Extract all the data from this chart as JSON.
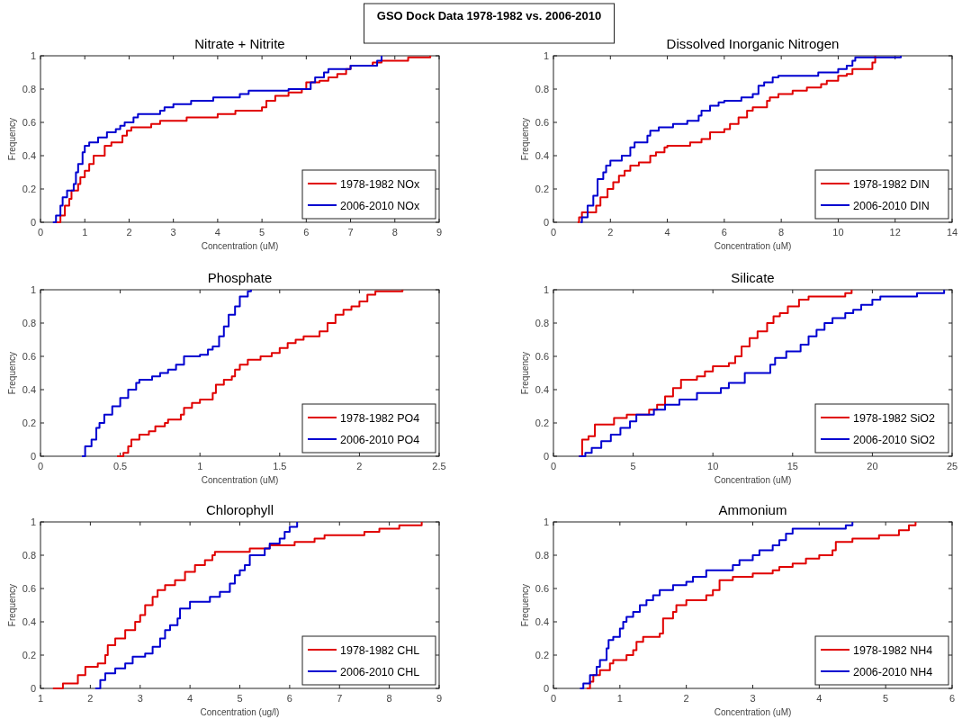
{
  "chart_data": [
    {
      "type": "step",
      "title": "Nitrate + Nitrite",
      "xlabel": "Concentration (uM)",
      "ylabel": "Frequency",
      "annotations": [
        "GSO Dock Data 1978-1982 vs. 2006-2010"
      ],
      "xlim": [
        0,
        9
      ],
      "xticks": [
        0,
        1,
        2,
        3,
        4,
        5,
        6,
        7,
        8,
        9
      ],
      "ylim": [
        0,
        1
      ],
      "yticks": [
        {
          "value": 0,
          "label": "0"
        },
        {
          "value": 0.2,
          "label": "0.2"
        },
        {
          "value": 0.4,
          "label": "0.4"
        },
        {
          "value": 0.6,
          "label": "0.6"
        },
        {
          "value": 0.8,
          "label": "0.8"
        },
        {
          "value": 1,
          "label": "1"
        }
      ],
      "legend": "bottom right",
      "grid": false,
      "series": [
        {
          "name": "1978-1982 NOx",
          "color": "#e00000",
          "x": [
            0.3,
            0.45,
            0.55,
            0.65,
            0.7,
            0.85,
            0.9,
            1.0,
            1.1,
            1.2,
            1.45,
            1.6,
            1.85,
            1.95,
            2.05,
            2.5,
            2.7,
            3.3,
            4.0,
            4.4,
            5.0,
            5.1,
            5.3,
            5.6,
            5.9,
            6.0,
            6.3,
            6.5,
            6.7,
            6.9,
            7.0,
            7.5,
            7.7,
            8.3,
            8.8
          ],
          "values": [
            0,
            0.04,
            0.1,
            0.14,
            0.19,
            0.23,
            0.27,
            0.31,
            0.35,
            0.4,
            0.46,
            0.48,
            0.52,
            0.55,
            0.57,
            0.59,
            0.61,
            0.63,
            0.65,
            0.67,
            0.69,
            0.73,
            0.76,
            0.78,
            0.8,
            0.84,
            0.85,
            0.87,
            0.89,
            0.92,
            0.94,
            0.96,
            0.97,
            0.99,
            1.0
          ]
        },
        {
          "name": "2006-2010 NOx",
          "color": "#0000d0",
          "x": [
            0.28,
            0.35,
            0.45,
            0.5,
            0.6,
            0.75,
            0.8,
            0.85,
            0.95,
            1.0,
            1.1,
            1.3,
            1.5,
            1.7,
            1.8,
            1.9,
            2.1,
            2.2,
            2.7,
            2.8,
            3.0,
            3.4,
            3.9,
            4.5,
            4.7,
            5.6,
            6.1,
            6.2,
            6.4,
            6.5,
            7.0,
            7.6,
            7.7
          ],
          "values": [
            0,
            0.04,
            0.1,
            0.15,
            0.19,
            0.23,
            0.3,
            0.35,
            0.42,
            0.46,
            0.48,
            0.51,
            0.54,
            0.56,
            0.58,
            0.6,
            0.63,
            0.65,
            0.67,
            0.69,
            0.71,
            0.73,
            0.75,
            0.77,
            0.79,
            0.8,
            0.84,
            0.87,
            0.9,
            0.92,
            0.94,
            0.97,
            1.0
          ]
        }
      ]
    },
    {
      "type": "step",
      "title": "Dissolved Inorganic Nitrogen",
      "xlabel": "Concentration (uM)",
      "ylabel": "Frequency",
      "xlim": [
        0,
        14
      ],
      "xticks": [
        0,
        2,
        4,
        6,
        8,
        10,
        12,
        14
      ],
      "ylim": [
        0,
        1
      ],
      "yticks": [
        {
          "value": 0,
          "label": "0"
        },
        {
          "value": 0.2,
          "label": "0.2"
        },
        {
          "value": 0.4,
          "label": "0.4"
        },
        {
          "value": 0.6,
          "label": "0.6"
        },
        {
          "value": 0.8,
          "label": "0.8"
        },
        {
          "value": 1,
          "label": "1"
        }
      ],
      "legend": "bottom right",
      "grid": false,
      "series": [
        {
          "name": "1978-1982 DIN",
          "color": "#e00000",
          "x": [
            0.85,
            0.9,
            1.0,
            1.5,
            1.65,
            1.9,
            2.1,
            2.3,
            2.5,
            2.7,
            3.0,
            3.4,
            3.6,
            3.9,
            4.0,
            4.8,
            5.2,
            5.5,
            6.0,
            6.2,
            6.5,
            6.8,
            7.0,
            7.5,
            7.6,
            7.9,
            8.4,
            8.9,
            9.4,
            9.6,
            10.0,
            10.3,
            10.5,
            11.2,
            11.3
          ],
          "values": [
            0,
            0.03,
            0.06,
            0.1,
            0.15,
            0.2,
            0.24,
            0.28,
            0.31,
            0.34,
            0.36,
            0.4,
            0.42,
            0.45,
            0.46,
            0.48,
            0.5,
            0.54,
            0.56,
            0.59,
            0.63,
            0.67,
            0.69,
            0.73,
            0.75,
            0.77,
            0.79,
            0.81,
            0.83,
            0.85,
            0.88,
            0.89,
            0.92,
            0.96,
            1.0
          ]
        },
        {
          "name": "2006-2010 DIN",
          "color": "#0000d0",
          "x": [
            0.95,
            1.0,
            1.2,
            1.4,
            1.55,
            1.75,
            1.85,
            2.0,
            2.4,
            2.7,
            2.85,
            3.3,
            3.4,
            3.7,
            4.2,
            4.7,
            5.1,
            5.2,
            5.5,
            5.8,
            6.0,
            6.6,
            7.0,
            7.2,
            7.4,
            7.7,
            7.9,
            9.3,
            10.0,
            10.3,
            10.5,
            10.6,
            11.2,
            12.2
          ],
          "values": [
            0,
            0.03,
            0.1,
            0.16,
            0.26,
            0.3,
            0.34,
            0.37,
            0.4,
            0.45,
            0.48,
            0.52,
            0.55,
            0.57,
            0.59,
            0.61,
            0.64,
            0.67,
            0.7,
            0.72,
            0.73,
            0.75,
            0.77,
            0.82,
            0.84,
            0.87,
            0.88,
            0.9,
            0.92,
            0.94,
            0.97,
            0.99,
            0.99,
            1.0
          ]
        }
      ]
    },
    {
      "type": "step",
      "title": "Phosphate",
      "xlabel": "Concentration (uM)",
      "ylabel": "Frequency",
      "xlim": [
        0,
        2.5
      ],
      "xticks": [
        0,
        0.5,
        1,
        1.5,
        2,
        2.5
      ],
      "ylim": [
        0,
        1
      ],
      "yticks": [
        {
          "value": 0,
          "label": "0"
        },
        {
          "value": 0.2,
          "label": "0.2"
        },
        {
          "value": 0.4,
          "label": "0.4"
        },
        {
          "value": 0.6,
          "label": "0.6"
        },
        {
          "value": 0.8,
          "label": "0.8"
        },
        {
          "value": 1,
          "label": "1"
        }
      ],
      "legend": "bottom right",
      "grid": false,
      "series": [
        {
          "name": "1978-1982 PO4",
          "color": "#e00000",
          "x": [
            0.48,
            0.52,
            0.55,
            0.57,
            0.62,
            0.68,
            0.72,
            0.78,
            0.8,
            0.88,
            0.9,
            0.95,
            1.0,
            1.08,
            1.1,
            1.15,
            1.2,
            1.22,
            1.25,
            1.3,
            1.38,
            1.45,
            1.5,
            1.55,
            1.6,
            1.65,
            1.75,
            1.8,
            1.85,
            1.9,
            1.95,
            2.0,
            2.05,
            2.1,
            2.27
          ],
          "values": [
            0,
            0.02,
            0.06,
            0.1,
            0.13,
            0.15,
            0.18,
            0.2,
            0.22,
            0.25,
            0.29,
            0.32,
            0.34,
            0.38,
            0.43,
            0.46,
            0.48,
            0.52,
            0.55,
            0.58,
            0.6,
            0.62,
            0.65,
            0.68,
            0.7,
            0.72,
            0.75,
            0.8,
            0.85,
            0.88,
            0.9,
            0.93,
            0.97,
            0.99,
            1.0
          ]
        },
        {
          "name": "2006-2010 PO4",
          "color": "#0000d0",
          "x": [
            0.26,
            0.28,
            0.32,
            0.35,
            0.37,
            0.4,
            0.45,
            0.5,
            0.55,
            0.6,
            0.62,
            0.7,
            0.75,
            0.8,
            0.85,
            0.9,
            1.0,
            1.05,
            1.08,
            1.12,
            1.15,
            1.18,
            1.22,
            1.25,
            1.3,
            1.32
          ],
          "values": [
            0,
            0.06,
            0.1,
            0.17,
            0.2,
            0.25,
            0.3,
            0.35,
            0.4,
            0.44,
            0.46,
            0.48,
            0.5,
            0.52,
            0.55,
            0.6,
            0.61,
            0.64,
            0.66,
            0.72,
            0.78,
            0.85,
            0.9,
            0.96,
            0.99,
            1.0
          ]
        }
      ]
    },
    {
      "type": "step",
      "title": "Silicate",
      "xlabel": "Concentration (uM)",
      "ylabel": "Frequency",
      "xlim": [
        0,
        25
      ],
      "xticks": [
        0,
        5,
        10,
        15,
        20,
        25
      ],
      "ylim": [
        0,
        1
      ],
      "yticks": [
        {
          "value": 0,
          "label": "0"
        },
        {
          "value": 0.2,
          "label": "0.2"
        },
        {
          "value": 0.4,
          "label": "0.4"
        },
        {
          "value": 0.6,
          "label": "0.6"
        },
        {
          "value": 0.8,
          "label": "0.8"
        },
        {
          "value": 1,
          "label": "1"
        }
      ],
      "legend": "bottom right",
      "grid": false,
      "series": [
        {
          "name": "1978-1982 SiO2",
          "color": "#e00000",
          "x": [
            1.6,
            1.8,
            2.2,
            2.6,
            3.8,
            4.6,
            6.0,
            6.5,
            7.0,
            7.5,
            8.0,
            9.0,
            9.5,
            10.0,
            11.0,
            11.4,
            11.8,
            12.3,
            12.8,
            13.4,
            13.8,
            14.2,
            14.7,
            15.4,
            16.0,
            18.3,
            18.7
          ],
          "values": [
            0,
            0.1,
            0.12,
            0.19,
            0.23,
            0.25,
            0.28,
            0.31,
            0.36,
            0.41,
            0.46,
            0.48,
            0.51,
            0.54,
            0.56,
            0.6,
            0.66,
            0.71,
            0.75,
            0.8,
            0.84,
            0.86,
            0.9,
            0.94,
            0.96,
            0.98,
            1.0
          ]
        },
        {
          "name": "2006-2010 SiO2",
          "color": "#0000d0",
          "x": [
            1.6,
            2.0,
            2.4,
            3.0,
            3.6,
            4.2,
            4.8,
            5.2,
            6.3,
            7.0,
            7.9,
            9.0,
            10.5,
            11.0,
            12.0,
            13.6,
            13.9,
            14.6,
            15.5,
            16.0,
            16.5,
            17.0,
            17.5,
            18.3,
            18.8,
            19.3,
            20.0,
            20.5,
            22.8,
            24.5
          ],
          "values": [
            0,
            0.02,
            0.05,
            0.09,
            0.13,
            0.17,
            0.21,
            0.25,
            0.28,
            0.31,
            0.34,
            0.38,
            0.41,
            0.44,
            0.5,
            0.55,
            0.59,
            0.63,
            0.67,
            0.72,
            0.76,
            0.8,
            0.83,
            0.86,
            0.88,
            0.91,
            0.94,
            0.96,
            0.98,
            1.0
          ]
        }
      ]
    },
    {
      "type": "step",
      "title": "Chlorophyll",
      "xlabel": "Concentration (ug/l)",
      "ylabel": "Frequency",
      "xlim": [
        1,
        9
      ],
      "xticks": [
        1,
        2,
        3,
        4,
        5,
        6,
        7,
        8,
        9
      ],
      "ylim": [
        0,
        1
      ],
      "yticks": [
        {
          "value": 0,
          "label": "0"
        },
        {
          "value": 0.2,
          "label": "0.2"
        },
        {
          "value": 0.4,
          "label": "0.4"
        },
        {
          "value": 0.6,
          "label": "0.6"
        },
        {
          "value": 0.8,
          "label": "0.8"
        },
        {
          "value": 1,
          "label": "1"
        }
      ],
      "legend": "bottom right",
      "grid": false,
      "series": [
        {
          "name": "1978-1982 CHL",
          "color": "#e00000",
          "x": [
            1.25,
            1.45,
            1.75,
            1.9,
            2.15,
            2.3,
            2.35,
            2.5,
            2.7,
            2.9,
            3.0,
            3.1,
            3.25,
            3.35,
            3.5,
            3.7,
            3.9,
            4.1,
            4.3,
            4.45,
            4.5,
            5.2,
            5.6,
            6.1,
            6.5,
            6.7,
            7.5,
            7.8,
            8.2,
            8.65
          ],
          "values": [
            0,
            0.03,
            0.08,
            0.13,
            0.15,
            0.2,
            0.26,
            0.3,
            0.35,
            0.4,
            0.44,
            0.5,
            0.55,
            0.59,
            0.62,
            0.65,
            0.7,
            0.74,
            0.77,
            0.8,
            0.82,
            0.84,
            0.86,
            0.88,
            0.9,
            0.92,
            0.94,
            0.96,
            0.98,
            1.0
          ]
        },
        {
          "name": "2006-2010 CHL",
          "color": "#0000d0",
          "x": [
            2.1,
            2.2,
            2.3,
            2.5,
            2.7,
            2.85,
            3.1,
            3.25,
            3.4,
            3.5,
            3.6,
            3.75,
            3.8,
            4.0,
            4.4,
            4.6,
            4.8,
            4.9,
            5.0,
            5.1,
            5.2,
            5.5,
            5.6,
            5.8,
            5.9,
            6.0,
            6.15
          ],
          "values": [
            0,
            0.05,
            0.09,
            0.12,
            0.15,
            0.19,
            0.21,
            0.25,
            0.3,
            0.35,
            0.38,
            0.42,
            0.48,
            0.52,
            0.55,
            0.58,
            0.63,
            0.68,
            0.71,
            0.74,
            0.8,
            0.84,
            0.87,
            0.9,
            0.94,
            0.97,
            1.0
          ]
        }
      ]
    },
    {
      "type": "step",
      "title": "Ammonium",
      "xlabel": "Concentration (uM)",
      "ylabel": "Frequency",
      "xlim": [
        0,
        6
      ],
      "xticks": [
        0,
        1,
        2,
        3,
        4,
        5,
        6
      ],
      "ylim": [
        0,
        1
      ],
      "yticks": [
        {
          "value": 0,
          "label": "0"
        },
        {
          "value": 0.2,
          "label": "0.2"
        },
        {
          "value": 0.4,
          "label": "0.4"
        },
        {
          "value": 0.6,
          "label": "0.6"
        },
        {
          "value": 0.8,
          "label": "0.8"
        },
        {
          "value": 1,
          "label": "1"
        }
      ],
      "legend": "bottom right",
      "grid": false,
      "series": [
        {
          "name": "1978-1982 NH4",
          "color": "#e00000",
          "x": [
            0.5,
            0.55,
            0.6,
            0.7,
            0.85,
            0.9,
            1.1,
            1.2,
            1.25,
            1.35,
            1.6,
            1.65,
            1.8,
            1.85,
            2.0,
            2.3,
            2.4,
            2.5,
            2.7,
            3.0,
            3.3,
            3.4,
            3.6,
            3.8,
            4.0,
            4.2,
            4.25,
            4.5,
            4.9,
            5.2,
            5.35,
            5.45
          ],
          "values": [
            0,
            0.04,
            0.08,
            0.11,
            0.15,
            0.17,
            0.2,
            0.23,
            0.28,
            0.31,
            0.33,
            0.42,
            0.46,
            0.5,
            0.53,
            0.56,
            0.59,
            0.65,
            0.67,
            0.69,
            0.71,
            0.73,
            0.75,
            0.78,
            0.8,
            0.83,
            0.88,
            0.9,
            0.92,
            0.95,
            0.98,
            1.0
          ]
        },
        {
          "name": "2006-2010 NH4",
          "color": "#0000d0",
          "x": [
            0.4,
            0.45,
            0.55,
            0.65,
            0.7,
            0.8,
            0.83,
            0.9,
            1.0,
            1.05,
            1.1,
            1.2,
            1.3,
            1.4,
            1.5,
            1.6,
            1.8,
            2.0,
            2.1,
            2.3,
            2.7,
            2.8,
            3.0,
            3.1,
            3.3,
            3.4,
            3.5,
            3.6,
            4.4,
            4.5
          ],
          "values": [
            0,
            0.03,
            0.08,
            0.13,
            0.17,
            0.24,
            0.29,
            0.31,
            0.36,
            0.4,
            0.43,
            0.46,
            0.5,
            0.53,
            0.56,
            0.59,
            0.62,
            0.64,
            0.67,
            0.71,
            0.74,
            0.77,
            0.8,
            0.83,
            0.86,
            0.89,
            0.93,
            0.96,
            0.98,
            1.0
          ]
        }
      ]
    }
  ]
}
